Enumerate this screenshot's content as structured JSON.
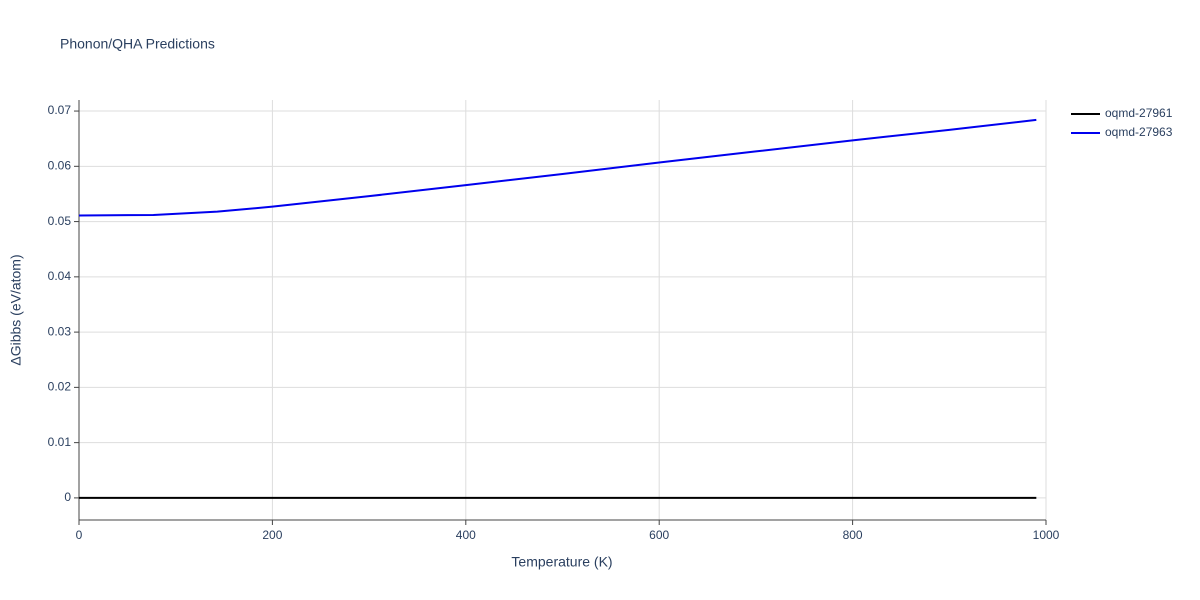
{
  "chart_data": {
    "type": "line",
    "title": "Phonon/QHA Predictions",
    "x_label": "Temperature (K)",
    "y_label": "ΔGibbs (eV/atom)",
    "x": [
      0,
      77,
      143,
      200,
      300,
      400,
      500,
      600,
      700,
      800,
      900,
      990
    ],
    "series": [
      {
        "name": "oqmd-27961",
        "color": "#000000",
        "values": [
          0,
          0,
          0,
          0,
          0,
          0,
          0,
          0,
          0,
          0,
          0,
          0
        ]
      },
      {
        "name": "oqmd-27963",
        "color": "#0000ee",
        "values": [
          0.0511,
          0.0512,
          0.0518,
          0.0527,
          0.0546,
          0.0566,
          0.0586,
          0.0607,
          0.0627,
          0.0647,
          0.0666,
          0.0684
        ]
      }
    ],
    "xlim": [
      0,
      1000
    ],
    "xticks": [
      0,
      200,
      400,
      600,
      800,
      1000
    ],
    "ylim": [
      -0.004,
      0.072
    ],
    "yticks": [
      0,
      0.01,
      0.02,
      0.03,
      0.04,
      0.05,
      0.06,
      0.07
    ],
    "grid": true,
    "legend": "right"
  }
}
